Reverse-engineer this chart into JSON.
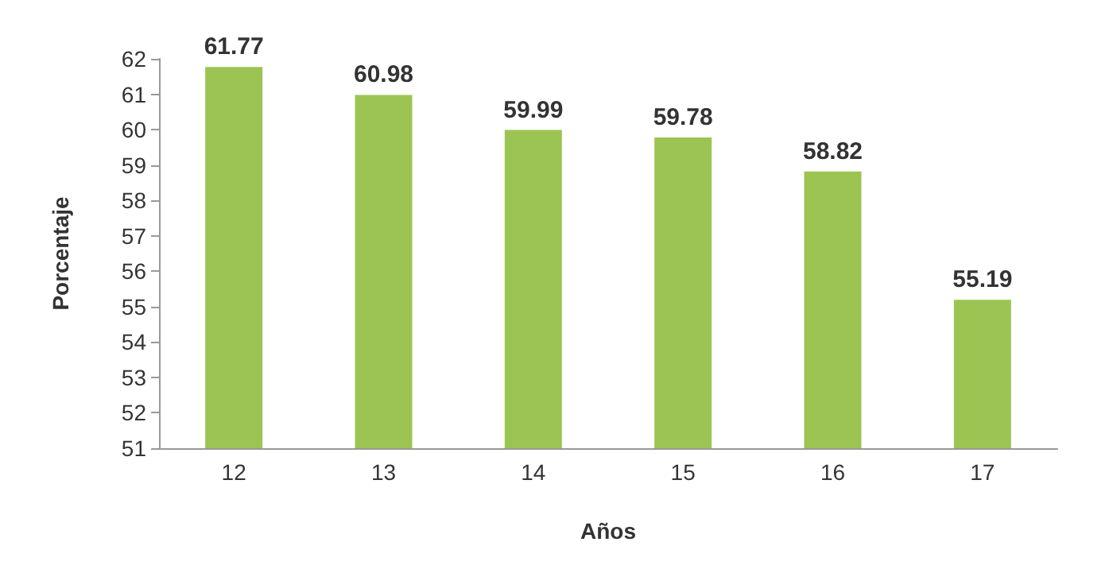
{
  "chart_data": {
    "type": "bar",
    "xlabel": "Años",
    "ylabel": "Porcentaje",
    "categories": [
      "12",
      "13",
      "14",
      "15",
      "16",
      "17"
    ],
    "values": [
      61.77,
      60.98,
      59.99,
      59.78,
      58.82,
      55.19
    ],
    "color": "#9cc453",
    "ylim": [
      51,
      62
    ],
    "yticks": [
      51,
      52,
      53,
      54,
      55,
      56,
      57,
      58,
      59,
      60,
      61,
      62
    ],
    "grid": false,
    "data_labels": true
  }
}
